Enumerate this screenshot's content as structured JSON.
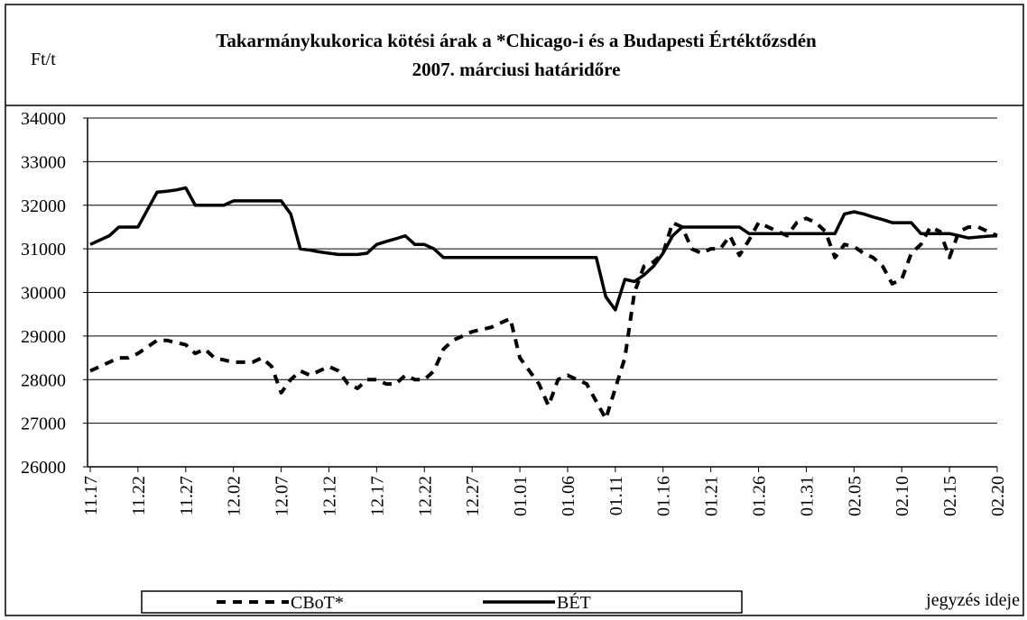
{
  "chart_data": {
    "type": "line",
    "title": [
      "Takarmánykukorica kötési árak a *Chicago-i és a Budapesti Értéktőzsdén",
      "2007. márciusi határidőre"
    ],
    "y_axis_label": "Ft/t",
    "x_axis_label": "jegyzés ideje",
    "categories": [
      "11.17",
      null,
      null,
      null,
      null,
      "11.22",
      null,
      null,
      null,
      null,
      "11.27",
      null,
      null,
      null,
      null,
      "12.02",
      null,
      null,
      null,
      null,
      "12.07",
      null,
      null,
      null,
      null,
      "12.12",
      null,
      null,
      null,
      null,
      "12.17",
      null,
      null,
      null,
      null,
      "12.22",
      null,
      null,
      null,
      null,
      "12.27",
      null,
      null,
      null,
      null,
      "01.01",
      null,
      null,
      null,
      null,
      "01.06",
      null,
      null,
      null,
      null,
      "01.11",
      null,
      null,
      null,
      null,
      "01.16",
      null,
      null,
      null,
      null,
      "01.21",
      null,
      null,
      null,
      null,
      "01.26",
      null,
      null,
      null,
      null,
      "01.31",
      null,
      null,
      null,
      null,
      "02.05",
      null,
      null,
      null,
      null,
      "02.10",
      null,
      null,
      null,
      null,
      "02.15",
      null,
      null,
      null,
      null,
      "02.20"
    ],
    "series": [
      {
        "name": "CBoT*",
        "color": "#000000",
        "style": "dashed",
        "values": [
          28200,
          28300,
          28400,
          28500,
          28500,
          28600,
          28750,
          28900,
          28900,
          28850,
          28800,
          28600,
          28700,
          28500,
          28450,
          28400,
          28400,
          28400,
          28500,
          28300,
          27700,
          28000,
          28200,
          28100,
          28200,
          28300,
          28200,
          27900,
          27800,
          28000,
          28000,
          27900,
          27900,
          28100,
          28000,
          28000,
          28200,
          28700,
          28900,
          29000,
          29100,
          29150,
          29200,
          29300,
          29400,
          28500,
          28200,
          27900,
          27400,
          28000,
          28100,
          28000,
          27900,
          27500,
          27100,
          27800,
          28500,
          30000,
          30600,
          30700,
          30900,
          31600,
          31500,
          31000,
          30900,
          31000,
          31000,
          31300,
          30850,
          31200,
          31600,
          31500,
          31400,
          31300,
          31600,
          31700,
          31600,
          31400,
          30800,
          31100,
          31050,
          30900,
          30800,
          30600,
          30200,
          30300,
          30900,
          31100,
          31500,
          31400,
          30800,
          31400,
          31500,
          31500,
          31400,
          31300
        ]
      },
      {
        "name": "BÉT",
        "color": "#000000",
        "style": "solid",
        "values": [
          31100,
          31200,
          31300,
          31500,
          31500,
          31500,
          31900,
          32300,
          32320,
          32350,
          32400,
          32000,
          32000,
          32000,
          32000,
          32100,
          32100,
          32100,
          32100,
          32100,
          32100,
          31800,
          31000,
          30970,
          30930,
          30900,
          30870,
          30870,
          30870,
          30900,
          31100,
          31170,
          31230,
          31300,
          31100,
          31100,
          31000,
          30800,
          30800,
          30800,
          30800,
          30800,
          30800,
          30800,
          30800,
          30800,
          30800,
          30800,
          30800,
          30800,
          30800,
          30800,
          30800,
          30800,
          29900,
          29600,
          30300,
          30250,
          30400,
          30600,
          30900,
          31300,
          31500,
          31500,
          31500,
          31500,
          31500,
          31500,
          31500,
          31350,
          31350,
          31350,
          31350,
          31350,
          31350,
          31350,
          31350,
          31350,
          31350,
          31800,
          31850,
          31800,
          31730,
          31670,
          31600,
          31600,
          31600,
          31350,
          31350,
          31350,
          31350,
          31300,
          31250,
          31270,
          31290,
          31300
        ]
      }
    ],
    "ylim": [
      26000,
      34000
    ],
    "yticks": [
      26000,
      27000,
      28000,
      29000,
      30000,
      31000,
      32000,
      33000,
      34000
    ],
    "grid": true,
    "legend": "bottom"
  }
}
